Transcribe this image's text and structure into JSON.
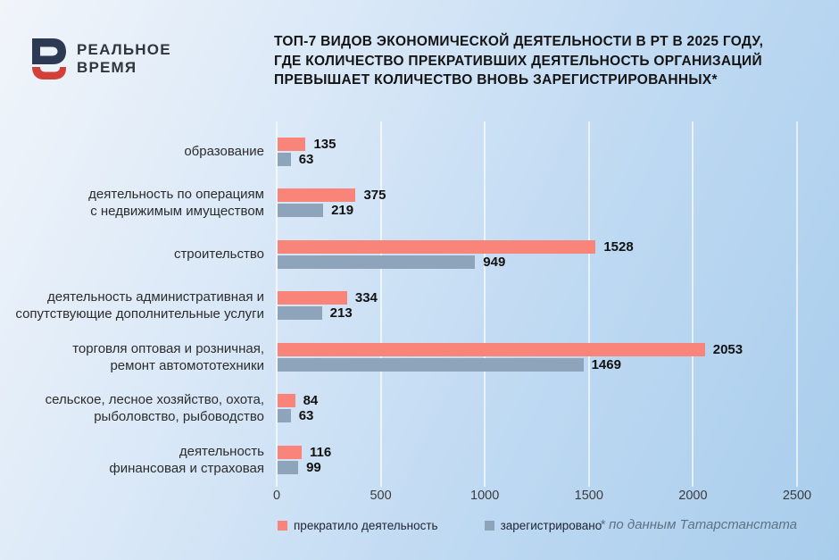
{
  "brand": {
    "name_line1": "РЕАЛЬНОЕ",
    "name_line2": "ВРЕМЯ"
  },
  "title": "ТОП-7 ВИДОВ ЭКОНОМИЧЕСКОЙ ДЕЯТЕЛЬНОСТИ В РТ В 2025 ГОДУ,\nГДЕ КОЛИЧЕСТВО ПРЕКРАТИВШИХ ДЕЯТЕЛЬНОСТЬ ОРГАНИЗАЦИЙ\nПРЕВЫШАЕТ КОЛИЧЕСТВО ВНОВЬ ЗАРЕГИСТРИРОВАННЫХ*",
  "footnote": "* по данным Татарстанстата",
  "colors": {
    "ceased": "#f8847a",
    "registered": "#8da4ba",
    "background_start": "#f1f5fa",
    "background_end": "#a8cdec",
    "logo_navy": "#2b3a52",
    "logo_red": "#d24139",
    "gridline": "rgba(255,255,255,0.65)"
  },
  "chart_data": {
    "type": "bar",
    "orientation": "horizontal",
    "title": "ТОП-7 ВИДОВ ЭКОНОМИЧЕСКОЙ ДЕЯТЕЛЬНОСТИ В РТ В 2025 ГОДУ, ГДЕ КОЛИЧЕСТВО ПРЕКРАТИВШИХ ДЕЯТЕЛЬНОСТЬ ОРГАНИЗАЦИЙ ПРЕВЫШАЕТ КОЛИЧЕСТВО ВНОВЬ ЗАРЕГИСТРИРОВАННЫХ*",
    "categories": [
      "образование",
      "деятельность по операциям\nс недвижимым имуществом",
      "строительство",
      "деятельность административная и\nсопутствующие дополнительные услуги",
      "торговля оптовая и розничная,\nремонт автомототехники",
      "сельское, лесное хозяйство, охота,\nрыболовство, рыбоводство",
      "деятельность\nфинансовая и страховая"
    ],
    "series": [
      {
        "name": "прекратило деятельность",
        "key": "ceased",
        "color": "#f8847a",
        "values": [
          135,
          375,
          1528,
          334,
          2053,
          84,
          116
        ]
      },
      {
        "name": "зарегистрировано",
        "key": "registered",
        "color": "#8da4ba",
        "values": [
          63,
          219,
          949,
          213,
          1469,
          63,
          99
        ]
      }
    ],
    "xticks": [
      0,
      500,
      1000,
      1500,
      2000,
      2500
    ],
    "xlim": [
      0,
      2500
    ],
    "grid": true,
    "legend_position": "bottom",
    "footnote": "* по данным Татарстанстата"
  }
}
